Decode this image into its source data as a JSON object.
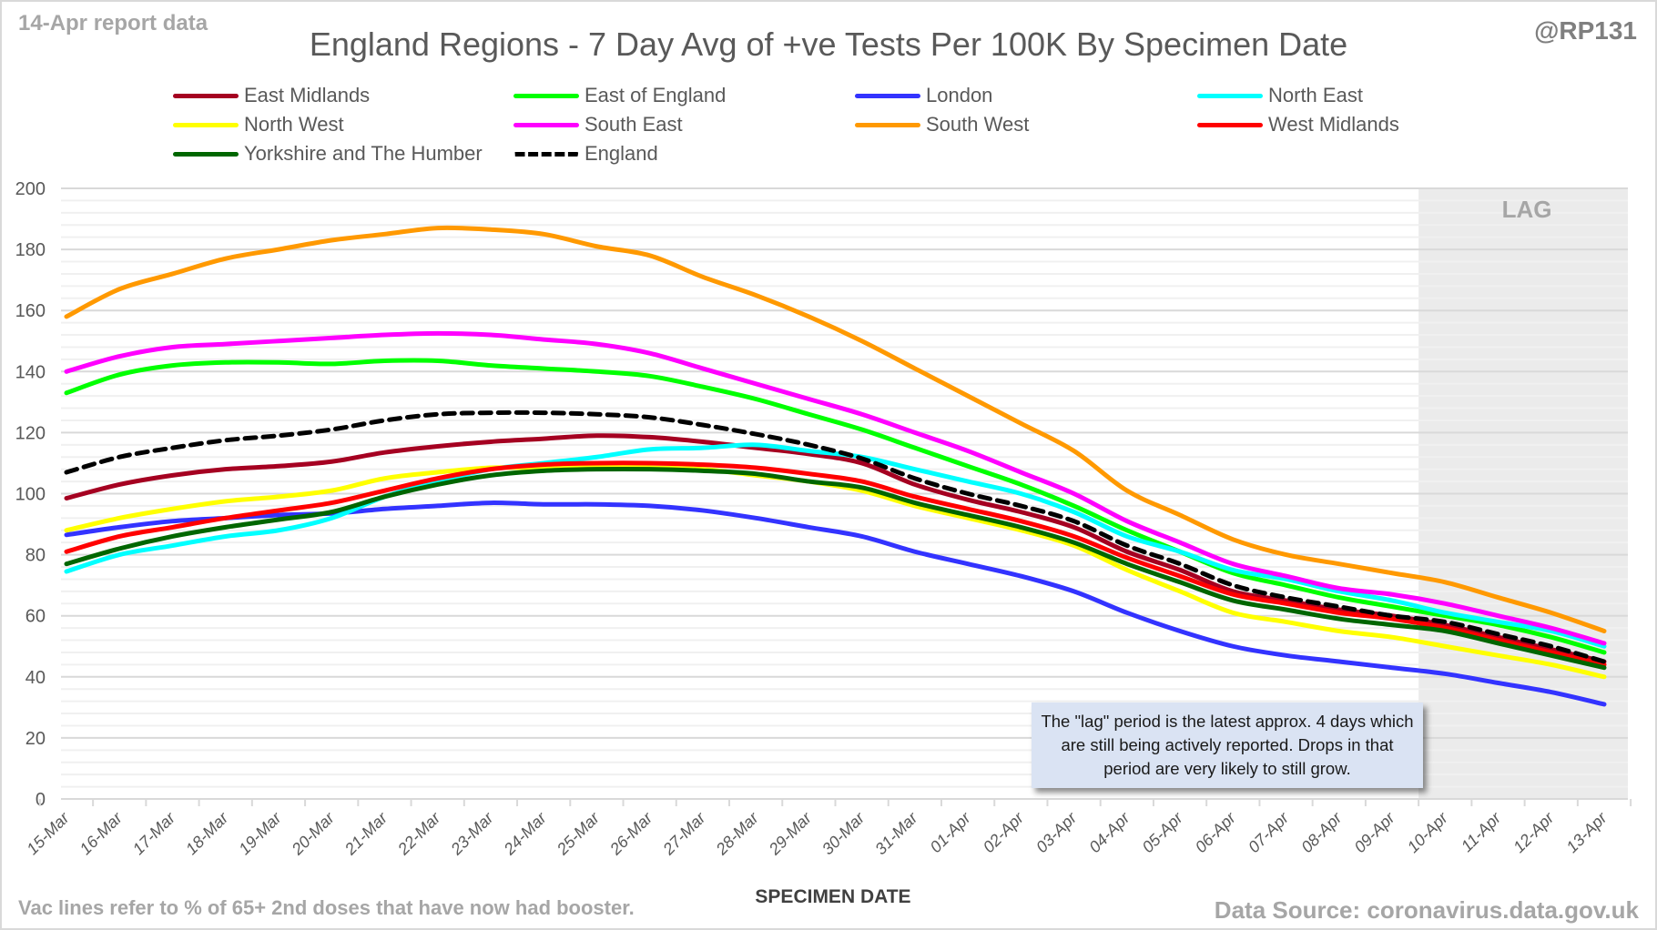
{
  "header": {
    "report_label": "14-Apr report data",
    "handle": "@RP131",
    "title": "England Regions - 7 Day Avg of +ve Tests Per 100K By Specimen Date"
  },
  "footer": {
    "x_axis_title": "SPECIMEN DATE",
    "footnote": "Vac lines refer to % of 65+ 2nd doses that have now had booster.",
    "source": "Data Source: coronavirus.data.gov.uk"
  },
  "annotation": {
    "lag_label": "LAG",
    "lag_start_category": "10-Apr",
    "note": "The \"lag\" period is the latest approx. 4 days which are still being actively reported. Drops in that period are very likely to still grow."
  },
  "chart_data": {
    "type": "line",
    "title": "England Regions - 7 Day Avg of +ve Tests Per 100K By Specimen Date",
    "xlabel": "SPECIMEN DATE",
    "ylabel": "",
    "ylim": [
      0,
      200
    ],
    "yticks": [
      0,
      20,
      40,
      60,
      80,
      100,
      120,
      140,
      160,
      180,
      200
    ],
    "grid": true,
    "legend_position": "top",
    "categories": [
      "15-Mar",
      "16-Mar",
      "17-Mar",
      "18-Mar",
      "19-Mar",
      "20-Mar",
      "21-Mar",
      "22-Mar",
      "23-Mar",
      "24-Mar",
      "25-Mar",
      "26-Mar",
      "27-Mar",
      "28-Mar",
      "29-Mar",
      "30-Mar",
      "31-Mar",
      "01-Apr",
      "02-Apr",
      "03-Apr",
      "04-Apr",
      "05-Apr",
      "06-Apr",
      "07-Apr",
      "08-Apr",
      "09-Apr",
      "10-Apr",
      "11-Apr",
      "12-Apr",
      "13-Apr"
    ],
    "series": [
      {
        "name": "East Midlands",
        "color": "#a50021",
        "dashed": false,
        "values": [
          98.5,
          103,
          106,
          108,
          109,
          110.5,
          113.5,
          115.5,
          117,
          118,
          119,
          118.5,
          117,
          115,
          113,
          110,
          103,
          98,
          94,
          89,
          81,
          75,
          68,
          65,
          62,
          60,
          57,
          53,
          49,
          45
        ]
      },
      {
        "name": "East of England",
        "color": "#00ff00",
        "dashed": false,
        "values": [
          133,
          139,
          142,
          143,
          143,
          142.5,
          143.5,
          143.5,
          142,
          141,
          140,
          138.5,
          135,
          131,
          126,
          121,
          115,
          109,
          103,
          96,
          88,
          81,
          74,
          70,
          66,
          63,
          60,
          57,
          53,
          48
        ]
      },
      {
        "name": "London",
        "color": "#3333ff",
        "dashed": false,
        "values": [
          86.5,
          89,
          91,
          92,
          93,
          93.5,
          95,
          96,
          97,
          96.5,
          96.5,
          96,
          94.5,
          92,
          89,
          86,
          81,
          77,
          73,
          68,
          61,
          55,
          50,
          47,
          45,
          43,
          41,
          38,
          35,
          31
        ]
      },
      {
        "name": "North East",
        "color": "#00ffff",
        "dashed": false,
        "values": [
          74.5,
          80,
          83,
          86,
          88,
          92,
          99,
          104,
          108,
          110,
          112,
          114.5,
          115,
          116,
          114,
          112,
          108,
          104,
          100,
          94,
          86,
          81,
          75,
          72,
          68,
          65,
          61,
          58,
          55,
          50
        ]
      },
      {
        "name": "North West",
        "color": "#ffff00",
        "dashed": false,
        "values": [
          88,
          92,
          95,
          97.5,
          99,
          101,
          105,
          107,
          108.5,
          108.5,
          109,
          108.5,
          108,
          106,
          104,
          101,
          96,
          92,
          88,
          83,
          75,
          68,
          61,
          58,
          55,
          53,
          50,
          47,
          44,
          40
        ]
      },
      {
        "name": "South East",
        "color": "#ff00ff",
        "dashed": false,
        "values": [
          140,
          145,
          148,
          149,
          150,
          151,
          152,
          152.5,
          152,
          150.5,
          149,
          146,
          141,
          136,
          131,
          126,
          120,
          114,
          107,
          100,
          91,
          84,
          77,
          73,
          69,
          67,
          64,
          60,
          56,
          51
        ]
      },
      {
        "name": "South West",
        "color": "#ff9900",
        "dashed": false,
        "values": [
          158,
          167,
          172,
          177,
          180,
          183,
          185,
          187,
          186.5,
          185,
          181,
          178,
          171,
          165,
          158,
          150,
          141,
          132,
          123,
          114,
          101,
          93,
          85,
          80,
          77,
          74,
          71,
          66,
          61,
          55
        ]
      },
      {
        "name": "West Midlands",
        "color": "#ff0000",
        "dashed": false,
        "values": [
          81,
          86,
          89,
          92,
          94.5,
          97,
          101,
          105,
          108,
          109.5,
          110,
          110,
          109.5,
          108.5,
          106.5,
          104,
          99,
          95,
          91,
          86,
          79,
          73,
          67,
          64,
          61,
          59,
          56,
          52,
          48,
          44
        ]
      },
      {
        "name": "Yorkshire and The Humber",
        "color": "#006600",
        "dashed": false,
        "values": [
          77,
          82,
          86,
          89,
          91.5,
          94,
          99,
          103,
          106,
          107.5,
          108,
          108,
          107.5,
          106.5,
          104,
          102,
          97,
          93,
          89,
          84,
          77,
          71,
          65,
          62,
          59,
          57,
          55,
          51,
          47,
          43
        ]
      },
      {
        "name": "England",
        "color": "#000000",
        "dashed": true,
        "values": [
          107,
          112,
          115,
          117.5,
          119,
          121,
          124,
          126,
          126.5,
          126.5,
          126,
          125,
          122.5,
          119.5,
          116,
          111.5,
          105,
          100,
          96,
          91,
          83,
          77,
          70,
          66,
          63,
          60,
          58,
          54,
          50,
          45
        ]
      }
    ]
  }
}
